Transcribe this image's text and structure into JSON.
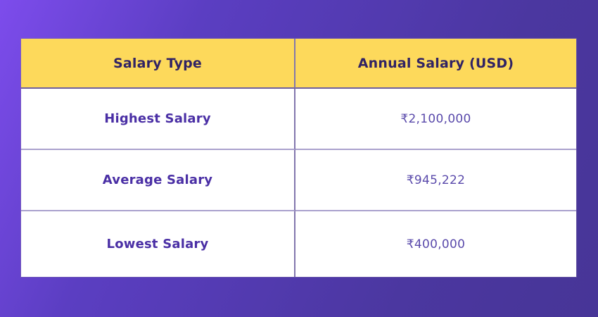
{
  "page": {
    "background_gradient": [
      "#7d4cec",
      "#5b3ec2",
      "#473597"
    ],
    "table_colors": {
      "header_bg": "#FDD95B",
      "header_text": "#312364",
      "label_text": "#4A2FA5",
      "value_text": "#5A4AAB",
      "column_divider": "#8276AD",
      "row_separator": "#AAA1CD",
      "header_bottom_border": "#6E5F9E"
    }
  },
  "chart_data": {
    "type": "table",
    "title": "",
    "columns": [
      "Salary Type",
      "Annual Salary (USD)"
    ],
    "rows": [
      [
        "Highest Salary",
        "₹2,100,000"
      ],
      [
        "Average Salary",
        "₹945,222"
      ],
      [
        "Lowest Salary",
        "₹400,000"
      ]
    ],
    "values_numeric": {
      "highest": 2100000,
      "average": 945222,
      "lowest": 400000
    },
    "currency_symbol": "₹"
  }
}
